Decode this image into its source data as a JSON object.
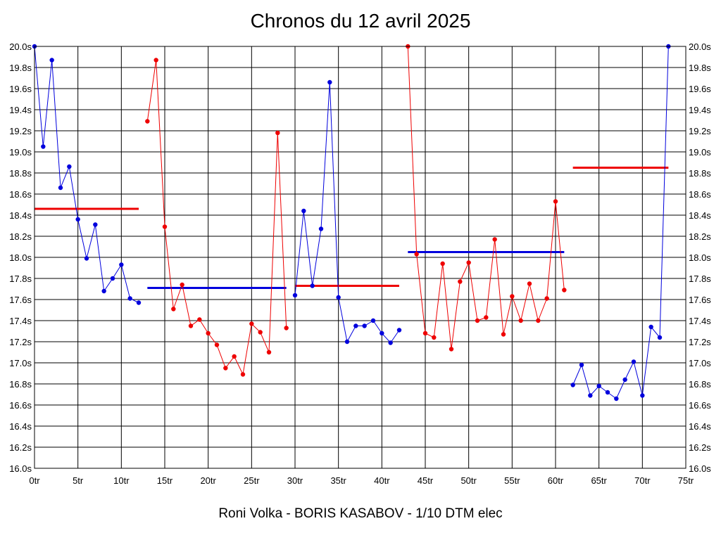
{
  "chart_data": {
    "type": "line",
    "title": "Chronos du 12 avril 2025",
    "footer": "Roni Volka - BORIS KASABOV - 1/10 DTM elec",
    "x_ticks": [
      "0tr",
      "5tr",
      "10tr",
      "15tr",
      "20tr",
      "25tr",
      "30tr",
      "35tr",
      "40tr",
      "45tr",
      "50tr",
      "55tr",
      "60tr",
      "65tr",
      "70tr",
      "75tr"
    ],
    "y_ticks": [
      "16.0s",
      "16.2s",
      "16.4s",
      "16.6s",
      "16.8s",
      "17.0s",
      "17.2s",
      "17.4s",
      "17.6s",
      "17.8s",
      "18.0s",
      "18.2s",
      "18.4s",
      "18.6s",
      "18.8s",
      "19.0s",
      "19.2s",
      "19.4s",
      "19.6s",
      "19.8s",
      "20.0s"
    ],
    "xlim": [
      0,
      73
    ],
    "ylim": [
      16.0,
      20.0
    ],
    "grid": true,
    "colors": {
      "blue": "#0000dd",
      "red": "#ee0000"
    },
    "series": [
      {
        "color": "blue",
        "points": [
          [
            0,
            20.0
          ],
          [
            1,
            19.05
          ],
          [
            2,
            19.87
          ],
          [
            3,
            18.66
          ],
          [
            4,
            18.86
          ],
          [
            5,
            18.36
          ],
          [
            6,
            17.99
          ],
          [
            7,
            18.31
          ],
          [
            8,
            17.68
          ],
          [
            9,
            17.8
          ],
          [
            10,
            17.93
          ],
          [
            11,
            17.61
          ],
          [
            12,
            17.57
          ]
        ]
      },
      {
        "color": "red",
        "points": [
          [
            13,
            19.29
          ],
          [
            14,
            19.87
          ],
          [
            15,
            18.29
          ],
          [
            16,
            17.51
          ],
          [
            17,
            17.74
          ],
          [
            18,
            17.35
          ],
          [
            19,
            17.41
          ],
          [
            20,
            17.28
          ],
          [
            21,
            17.17
          ],
          [
            22,
            16.95
          ],
          [
            23,
            17.06
          ],
          [
            24,
            16.89
          ],
          [
            25,
            17.37
          ],
          [
            26,
            17.29
          ],
          [
            27,
            17.1
          ],
          [
            28,
            19.18
          ],
          [
            29,
            17.33
          ]
        ]
      },
      {
        "color": "blue",
        "points": [
          [
            30,
            17.64
          ],
          [
            31,
            18.44
          ],
          [
            32,
            17.73
          ],
          [
            33,
            18.27
          ],
          [
            34,
            19.66
          ],
          [
            35,
            17.62
          ],
          [
            36,
            17.2
          ],
          [
            37,
            17.35
          ],
          [
            38,
            17.35
          ],
          [
            39,
            17.4
          ],
          [
            40,
            17.28
          ],
          [
            41,
            17.19
          ],
          [
            42,
            17.31
          ]
        ]
      },
      {
        "color": "red",
        "points": [
          [
            43,
            20.0
          ],
          [
            44,
            18.03
          ],
          [
            45,
            17.28
          ],
          [
            46,
            17.24
          ],
          [
            47,
            17.94
          ],
          [
            48,
            17.13
          ],
          [
            49,
            17.77
          ],
          [
            50,
            17.95
          ],
          [
            51,
            17.4
          ],
          [
            52,
            17.43
          ],
          [
            53,
            18.17
          ],
          [
            54,
            17.27
          ],
          [
            55,
            17.63
          ],
          [
            56,
            17.4
          ],
          [
            57,
            17.75
          ],
          [
            58,
            17.4
          ],
          [
            59,
            17.61
          ],
          [
            60,
            18.53
          ],
          [
            61,
            17.69
          ]
        ]
      },
      {
        "color": "blue",
        "points": [
          [
            62,
            16.79
          ],
          [
            63,
            16.98
          ],
          [
            64,
            16.69
          ],
          [
            65,
            16.78
          ],
          [
            66,
            16.72
          ],
          [
            67,
            16.66
          ],
          [
            68,
            16.84
          ],
          [
            69,
            17.01
          ],
          [
            70,
            16.69
          ],
          [
            71,
            17.34
          ],
          [
            72,
            17.24
          ],
          [
            73,
            20.0
          ]
        ]
      }
    ],
    "averages": [
      {
        "color": "red",
        "x_start": 0,
        "x_end": 12,
        "y": 18.46
      },
      {
        "color": "blue",
        "x_start": 13,
        "x_end": 29,
        "y": 17.71
      },
      {
        "color": "red",
        "x_start": 30,
        "x_end": 42,
        "y": 17.73
      },
      {
        "color": "blue",
        "x_start": 43,
        "x_end": 61,
        "y": 18.05
      },
      {
        "color": "red",
        "x_start": 62,
        "x_end": 73,
        "y": 18.85
      }
    ]
  }
}
